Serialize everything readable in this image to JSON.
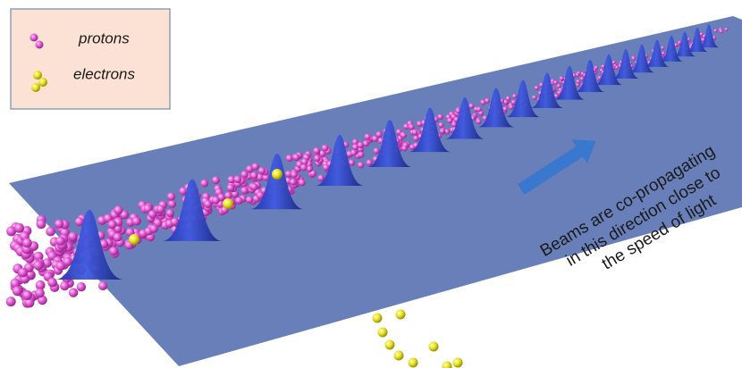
{
  "legend": {
    "items": [
      {
        "label": "protons"
      },
      {
        "label": "electrons"
      }
    ]
  },
  "annotation": {
    "lines": [
      "Beams are co-propagating",
      "in this direction close to",
      "the speed of light"
    ]
  }
}
